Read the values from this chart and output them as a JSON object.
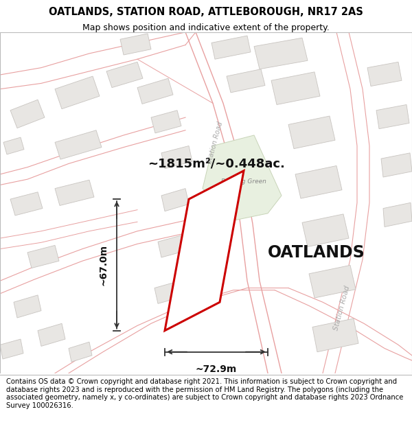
{
  "title_line1": "OATLANDS, STATION ROAD, ATTLEBOROUGH, NR17 2AS",
  "title_line2": "Map shows position and indicative extent of the property.",
  "property_label": "OATLANDS",
  "area_label": "~1815m²/~0.448ac.",
  "width_label": "~72.9m",
  "height_label": "~67.0m",
  "footer_text": "Contains OS data © Crown copyright and database right 2021. This information is subject to Crown copyright and database rights 2023 and is reproduced with the permission of HM Land Registry. The polygons (including the associated geometry, namely x, y co-ordinates) are subject to Crown copyright and database rights 2023 Ordnance Survey 100026316.",
  "map_bg_color": "#f8f6f3",
  "road_line_color": "#e8a0a0",
  "building_fill": "#e8e6e3",
  "building_edge": "#c8c4c0",
  "property_fill": "#ffffff",
  "property_edge": "#cc0000",
  "green_fill": "#e8f0e0",
  "green_edge": "#c8d4b8",
  "road_label_color": "#999999",
  "title_fontsize": 10.5,
  "subtitle_fontsize": 9,
  "footer_fontsize": 7.2
}
